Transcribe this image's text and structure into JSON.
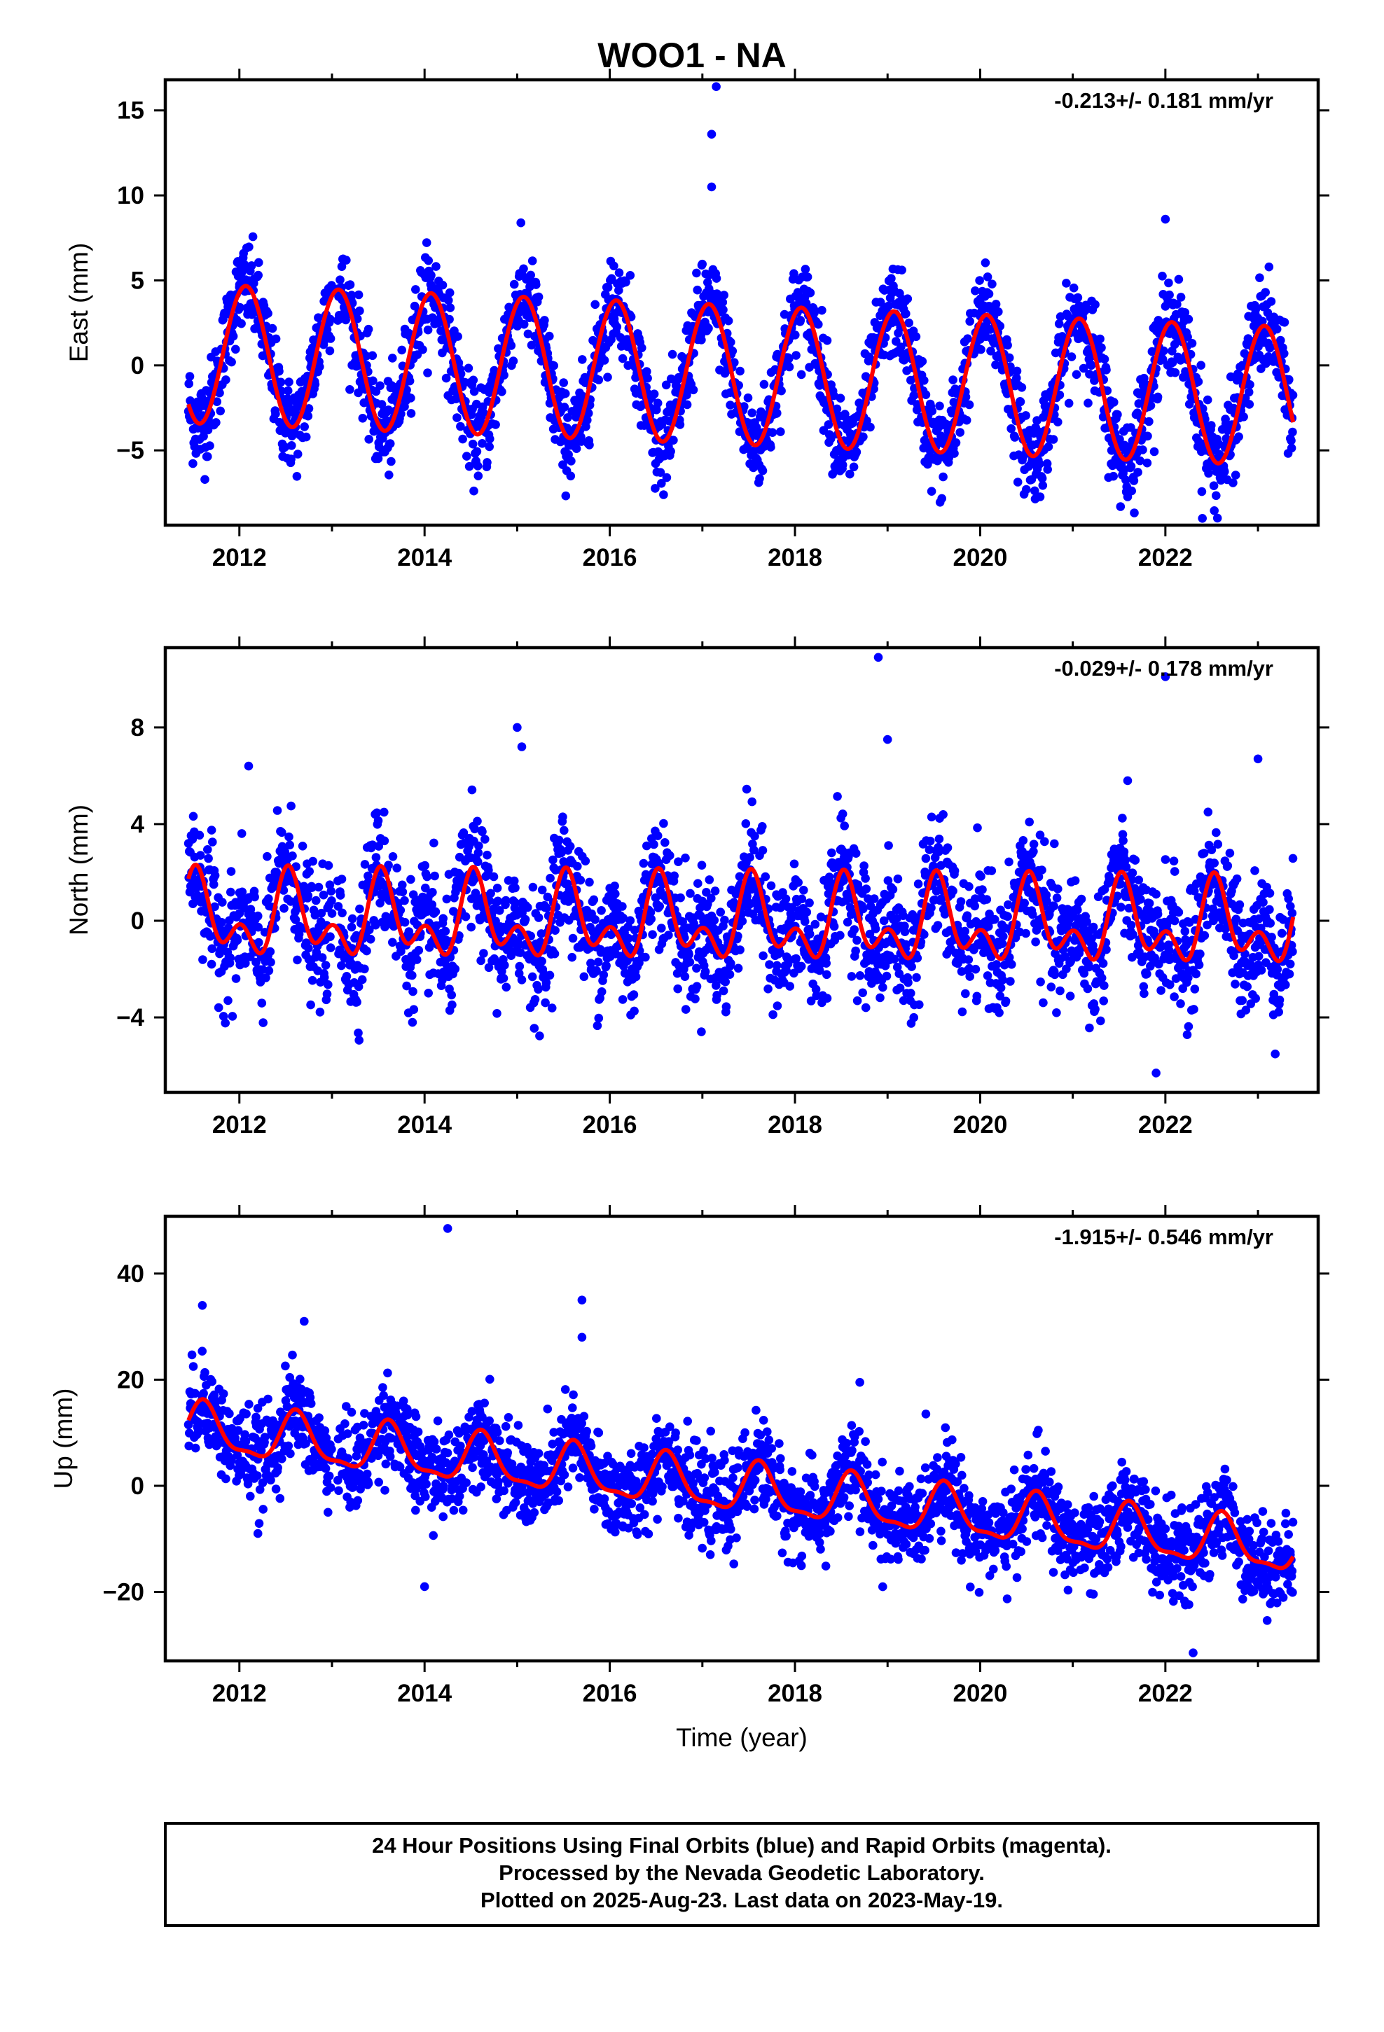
{
  "figure": {
    "title": "WOO1 - NA",
    "xlabel": "Time (year)",
    "footer": [
      "24 Hour Positions Using Final Orbits (blue) and Rapid Orbits (magenta).",
      "Processed by the Nevada Geodetic Laboratory.",
      "Plotted on 2025-Aug-23. Last data on 2023-May-19."
    ],
    "colors": {
      "data": "#0000ff",
      "model": "#ff0000",
      "frame": "#000000"
    }
  },
  "chart_data": [
    {
      "type": "scatter",
      "component": "east",
      "ylabel": "East (mm)",
      "rate_label": "-0.213+/- 0.181 mm/yr",
      "trend_mm_per_yr": -0.213,
      "xlim": [
        2011.2,
        2023.65
      ],
      "ylim": [
        -9.4,
        16.8
      ],
      "xticks": [
        2012,
        2014,
        2016,
        2018,
        2020,
        2022
      ],
      "yticks": [
        -5,
        0,
        5,
        10,
        15
      ],
      "x_start": 2011.45,
      "x_end": 2023.38,
      "series": [
        {
          "role": "data",
          "color": "#0000ff",
          "sampled_points": [
            [
              2011.5,
              -3.1
            ],
            [
              2011.7,
              -1.0
            ],
            [
              2011.9,
              3.0
            ],
            [
              2012.0,
              4.6
            ],
            [
              2012.1,
              4.4
            ],
            [
              2012.3,
              1.0
            ],
            [
              2012.5,
              -3.4
            ],
            [
              2012.6,
              -2.6
            ],
            [
              2012.8,
              1.5
            ],
            [
              2013.0,
              4.3
            ],
            [
              2013.2,
              3.6
            ],
            [
              2013.4,
              -1.0
            ],
            [
              2013.5,
              -3.6
            ],
            [
              2013.7,
              -1.4
            ],
            [
              2013.9,
              2.7
            ],
            [
              2014.1,
              4.1
            ],
            [
              2014.3,
              1.5
            ],
            [
              2014.5,
              -3.9
            ],
            [
              2014.7,
              -1.6
            ],
            [
              2015.0,
              3.9
            ],
            [
              2015.1,
              3.7
            ],
            [
              2015.3,
              -1.0
            ],
            [
              2015.5,
              -4.2
            ],
            [
              2015.7,
              -2.0
            ],
            [
              2016.0,
              3.4
            ],
            [
              2016.1,
              3.2
            ],
            [
              2016.3,
              -1.5
            ],
            [
              2016.5,
              -4.4
            ],
            [
              2016.8,
              -0.5
            ],
            [
              2017.0,
              3.3
            ],
            [
              2017.1,
              10.5
            ],
            [
              2017.1,
              13.6
            ],
            [
              2017.15,
              16.4
            ],
            [
              2017.3,
              -1.6
            ],
            [
              2017.5,
              -4.6
            ],
            [
              2017.8,
              0.5
            ],
            [
              2018.1,
              3.3
            ],
            [
              2018.3,
              -0.5
            ],
            [
              2018.5,
              -4.8
            ],
            [
              2018.8,
              0.5
            ],
            [
              2019.0,
              3.0
            ],
            [
              2019.2,
              0.5
            ],
            [
              2019.5,
              -4.9
            ],
            [
              2019.7,
              -1.6
            ],
            [
              2020.0,
              2.9
            ],
            [
              2020.2,
              0.5
            ],
            [
              2020.5,
              -5.1
            ],
            [
              2020.7,
              -2.4
            ],
            [
              2021.0,
              2.6
            ],
            [
              2021.2,
              0.0
            ],
            [
              2021.5,
              -5.3
            ],
            [
              2021.7,
              -1.6
            ],
            [
              2022.0,
              2.1
            ],
            [
              2022.0,
              8.6
            ],
            [
              2022.3,
              -1.0
            ],
            [
              2022.5,
              -5.6
            ],
            [
              2022.7,
              -2.6
            ],
            [
              2023.0,
              2.3
            ],
            [
              2023.2,
              0.5
            ],
            [
              2023.35,
              -4.3
            ],
            [
              2022.4,
              -9.0
            ]
          ]
        },
        {
          "role": "model",
          "color": "#ff0000",
          "seasonal": {
            "period_yr": 1.0,
            "mean_at_2011": 0.8,
            "annual_amp": 4.1,
            "annual_phase_peak": 2012.07
          }
        }
      ]
    },
    {
      "type": "scatter",
      "component": "north",
      "ylabel": "North (mm)",
      "rate_label": "-0.029+/- 0.178 mm/yr",
      "trend_mm_per_yr": -0.029,
      "xlim": [
        2011.2,
        2023.65
      ],
      "ylim": [
        -7.1,
        11.3
      ],
      "xticks": [
        2012,
        2014,
        2016,
        2018,
        2020,
        2022
      ],
      "yticks": [
        -4,
        0,
        4,
        8
      ],
      "x_start": 2011.45,
      "x_end": 2023.38,
      "series": [
        {
          "role": "data",
          "color": "#0000ff",
          "sampled_points": [
            [
              2011.5,
              1.7
            ],
            [
              2011.7,
              -1.8
            ],
            [
              2012.0,
              0.3
            ],
            [
              2012.1,
              6.4
            ],
            [
              2012.2,
              0.2
            ],
            [
              2012.5,
              1.7
            ],
            [
              2012.8,
              -1.9
            ],
            [
              2013.0,
              0.3
            ],
            [
              2013.5,
              1.7
            ],
            [
              2013.8,
              -1.9
            ],
            [
              2014.1,
              0.3
            ],
            [
              2014.5,
              1.7
            ],
            [
              2014.8,
              -1.9
            ],
            [
              2015.0,
              8.0
            ],
            [
              2015.05,
              7.2
            ],
            [
              2015.2,
              0.3
            ],
            [
              2015.5,
              1.6
            ],
            [
              2015.8,
              -2.0
            ],
            [
              2016.1,
              0.2
            ],
            [
              2016.5,
              1.6
            ],
            [
              2016.8,
              -2.0
            ],
            [
              2017.1,
              0.2
            ],
            [
              2017.5,
              1.6
            ],
            [
              2017.8,
              -2.1
            ],
            [
              2018.1,
              0.1
            ],
            [
              2018.5,
              1.6
            ],
            [
              2018.8,
              -2.1
            ],
            [
              2018.9,
              10.9
            ],
            [
              2019.0,
              7.5
            ],
            [
              2019.1,
              0.1
            ],
            [
              2019.5,
              1.6
            ],
            [
              2019.8,
              -2.1
            ],
            [
              2020.1,
              0.1
            ],
            [
              2020.5,
              1.6
            ],
            [
              2020.8,
              -2.1
            ],
            [
              2021.1,
              0.0
            ],
            [
              2021.5,
              1.5
            ],
            [
              2021.8,
              -2.2
            ],
            [
              2021.9,
              -6.3
            ],
            [
              2022.0,
              10.1
            ],
            [
              2022.1,
              0.0
            ],
            [
              2022.5,
              1.5
            ],
            [
              2022.8,
              -2.2
            ],
            [
              2023.0,
              6.7
            ],
            [
              2023.1,
              0.0
            ],
            [
              2023.35,
              0.6
            ]
          ]
        },
        {
          "role": "model",
          "color": "#ff0000",
          "seasonal": {
            "period_yr": 1.0,
            "mean_at_2011": 0.1,
            "annual_amp": 1.25,
            "semiannual_amp": 1.0
          }
        }
      ]
    },
    {
      "type": "scatter",
      "component": "up",
      "ylabel": "Up (mm)",
      "rate_label": "-1.915+/- 0.546 mm/yr",
      "trend_mm_per_yr": -1.915,
      "xlim": [
        2011.2,
        2023.65
      ],
      "ylim": [
        -33,
        50.8
      ],
      "xticks": [
        2012,
        2014,
        2016,
        2018,
        2020,
        2022
      ],
      "yticks": [
        -20,
        0,
        20,
        40
      ],
      "x_start": 2011.45,
      "x_end": 2023.38,
      "series": [
        {
          "role": "data",
          "color": "#0000ff",
          "sampled_points": [
            [
              2011.45,
              11.5
            ],
            [
              2011.6,
              16.8
            ],
            [
              2011.6,
              34.0
            ],
            [
              2011.9,
              10.0
            ],
            [
              2012.2,
              5.0
            ],
            [
              2012.2,
              -9.0
            ],
            [
              2012.6,
              14.5
            ],
            [
              2012.7,
              31.0
            ],
            [
              2012.9,
              8.0
            ],
            [
              2013.2,
              3.0
            ],
            [
              2013.6,
              13.0
            ],
            [
              2013.9,
              6.0
            ],
            [
              2014.0,
              -19.0
            ],
            [
              2014.2,
              1.5
            ],
            [
              2014.25,
              48.5
            ],
            [
              2014.6,
              11.0
            ],
            [
              2014.9,
              4.5
            ],
            [
              2015.2,
              -1.0
            ],
            [
              2015.6,
              9.5
            ],
            [
              2015.7,
              35.0
            ],
            [
              2015.7,
              28.0
            ],
            [
              2016.0,
              2.0
            ],
            [
              2016.2,
              -3.0
            ],
            [
              2016.6,
              7.0
            ],
            [
              2016.9,
              0.5
            ],
            [
              2017.2,
              -4.5
            ],
            [
              2017.6,
              5.0
            ],
            [
              2017.9,
              -1.0
            ],
            [
              2018.2,
              -6.0
            ],
            [
              2018.6,
              3.0
            ],
            [
              2018.7,
              19.5
            ],
            [
              2018.9,
              -2.5
            ],
            [
              2019.2,
              -8.0
            ],
            [
              2019.6,
              1.0
            ],
            [
              2019.9,
              -4.0
            ],
            [
              2020.2,
              -10.0
            ],
            [
              2020.6,
              -0.5
            ],
            [
              2020.9,
              -6.0
            ],
            [
              2021.2,
              -12.0
            ],
            [
              2021.6,
              -2.0
            ],
            [
              2021.9,
              -8.0
            ],
            [
              2022.2,
              -14.0
            ],
            [
              2022.3,
              -31.5
            ],
            [
              2022.6,
              -4.0
            ],
            [
              2022.9,
              -10.0
            ],
            [
              2023.2,
              -16.0
            ],
            [
              2023.35,
              -13.0
            ]
          ]
        },
        {
          "role": "model",
          "color": "#ff0000",
          "seasonal": {
            "period_yr": 1.0,
            "mean_at_2011": 11.5,
            "annual_amp": 4.5,
            "semiannual_amp": 1.5
          }
        }
      ]
    }
  ]
}
